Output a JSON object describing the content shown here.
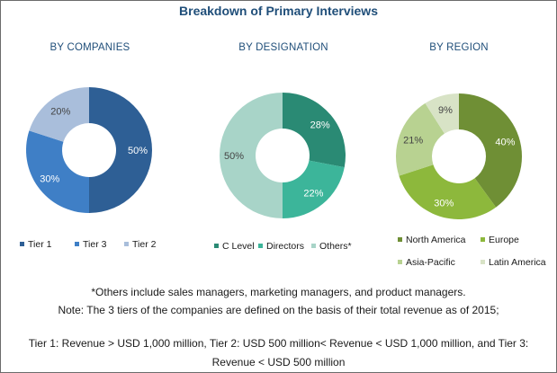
{
  "title": "Breakdown of Primary Interviews",
  "colors": {
    "tier1": "#2e5f95",
    "tier3": "#3f7fc6",
    "tier2": "#a9bedb",
    "c_level": "#2a8a74",
    "directors": "#3cb59a",
    "others": "#a8d4c8",
    "north_america": "#6f8f35",
    "europe": "#8db83c",
    "asia_pacific": "#b8d291",
    "latin_america": "#d8e3c6"
  },
  "chart_data": [
    {
      "type": "pie",
      "title": "BY COMPANIES",
      "slices": [
        {
          "label": "Tier 1",
          "value": 50,
          "color_key": "tier1"
        },
        {
          "label": "Tier 3",
          "value": 30,
          "color_key": "tier3"
        },
        {
          "label": "Tier 2",
          "value": 20,
          "color_key": "tier2"
        }
      ],
      "legend": [
        "Tier 1",
        "Tier 3",
        "Tier 2"
      ]
    },
    {
      "type": "pie",
      "title": "BY DESIGNATION",
      "slices": [
        {
          "label": "C Level",
          "value": 28,
          "color_key": "c_level"
        },
        {
          "label": "Directors",
          "value": 22,
          "color_key": "directors"
        },
        {
          "label": "Others*",
          "value": 50,
          "color_key": "others"
        }
      ],
      "legend": [
        "C Level",
        "Directors",
        "Others*"
      ]
    },
    {
      "type": "pie",
      "title": "BY REGION",
      "slices": [
        {
          "label": "North America",
          "value": 40,
          "color_key": "north_america"
        },
        {
          "label": "Europe",
          "value": 30,
          "color_key": "europe"
        },
        {
          "label": "Asia-Pacific",
          "value": 21,
          "color_key": "asia_pacific"
        },
        {
          "label": "Latin America",
          "value": 9,
          "color_key": "latin_america"
        }
      ],
      "legend": [
        "North America",
        "Europe",
        "Asia-Pacific",
        "Latin America"
      ]
    }
  ],
  "notes": {
    "line1": "*Others include sales managers, marketing managers, and product managers.",
    "line2": "Note: The 3 tiers of the companies are defined on the basis of their total revenue as of 2015;",
    "line3": "Tier 1: Revenue > USD 1,000 million, Tier 2: USD 500 million< Revenue < USD 1,000 million, and Tier 3:",
    "line4": "Revenue < USD 500 million"
  }
}
